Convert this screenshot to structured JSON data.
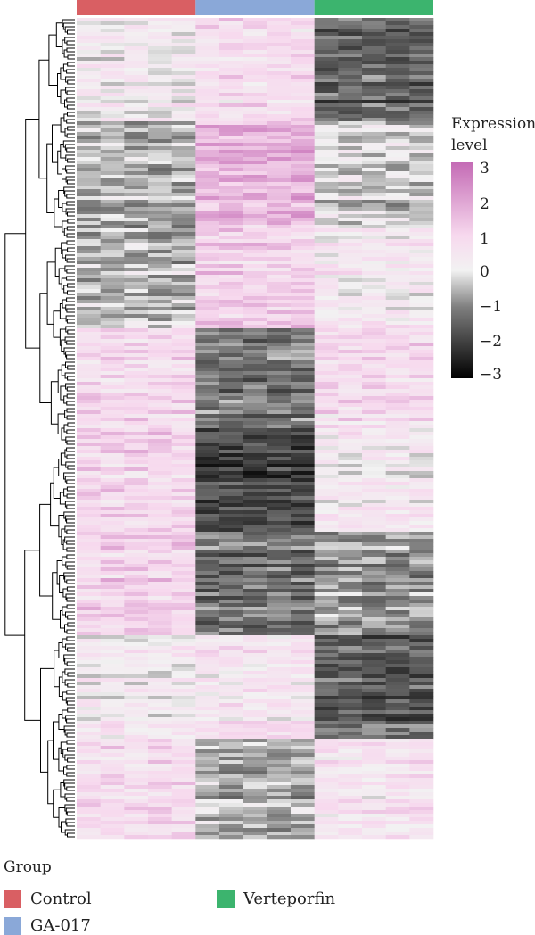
{
  "chart_data": {
    "type": "heatmap",
    "title": "",
    "n_samples": 15,
    "samples_per_group": 5,
    "dendrogram": true,
    "annotation_bar": "top",
    "groups": [
      {
        "name": "Control",
        "color": "#d95f63"
      },
      {
        "name": "GA-017",
        "color": "#8aa8d8"
      },
      {
        "name": "Verteporfin",
        "color": "#3cb46e"
      }
    ],
    "colorbar": {
      "title_lines": [
        "Expression",
        "level"
      ],
      "min": -3,
      "max": 3,
      "ticks": [
        "3",
        "2",
        "1",
        "0",
        "−1",
        "−2",
        "−3"
      ],
      "colors": [
        "#000000",
        "#7f7f7f",
        "#f2f2f2",
        "#f7d9ee",
        "#c46bb5"
      ],
      "placement": "right"
    },
    "cluster_pattern": [
      {
        "control": 0.2,
        "ga017": 0.8,
        "verteporfin": -1.4
      },
      {
        "control": -0.7,
        "ga017": 1.6,
        "verteporfin": -0.4
      },
      {
        "control": -0.6,
        "ga017": 1.1,
        "verteporfin": 0.3
      },
      {
        "control": 0.9,
        "ga017": -1.2,
        "verteporfin": 0.8
      },
      {
        "control": 1.0,
        "ga017": -1.9,
        "verteporfin": 0.3
      },
      {
        "control": 1.1,
        "ga017": -1.2,
        "verteporfin": -0.8
      },
      {
        "control": 0.3,
        "ga017": 0.6,
        "verteporfin": -1.5
      },
      {
        "control": 0.8,
        "ga017": -0.6,
        "verteporfin": 0.6
      }
    ]
  },
  "legend": {
    "group_title": "Group",
    "items": [
      "Control",
      "GA-017",
      "Verteporfin"
    ]
  }
}
